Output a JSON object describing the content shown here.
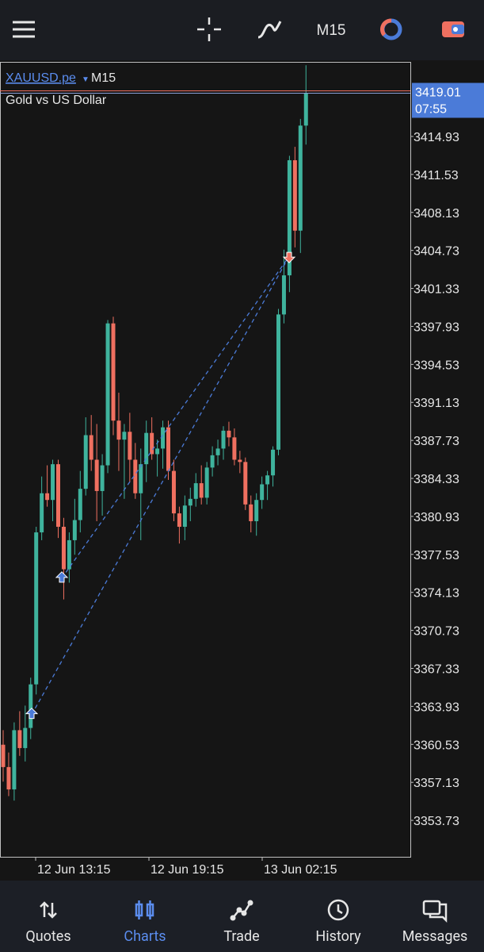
{
  "toolbar": {
    "timeframe": "M15"
  },
  "chart_data": {
    "type": "candlestick",
    "symbol": "XAUUSD.pe",
    "symbol_timeframe": "M15",
    "description": "Gold vs US Dollar",
    "up_color": "#3fb39d",
    "down_color": "#ef7060",
    "ylim": [
      3350.47,
      3421.53
    ],
    "yticks": [
      3414.93,
      3411.53,
      3408.13,
      3404.73,
      3401.33,
      3397.93,
      3394.53,
      3391.13,
      3387.73,
      3384.33,
      3380.93,
      3377.53,
      3374.13,
      3370.73,
      3367.33,
      3363.93,
      3360.53,
      3357.13,
      3353.73
    ],
    "x_labels": [
      "12 Jun 13:15",
      "12 Jun 19:15",
      "13 Jun 02:15"
    ],
    "bid": 3419.01,
    "bid_time": "07:55",
    "trades": [
      {
        "open": 3363.2,
        "close": 3404.2
      },
      {
        "open": 3375.4,
        "close": 3404.2
      }
    ],
    "ohlc": [
      [
        3360.5,
        3361.8,
        3357.2,
        3358.5
      ],
      [
        3358.5,
        3359.8,
        3355.9,
        3356.5
      ],
      [
        3356.5,
        3362.5,
        3355.5,
        3361.8
      ],
      [
        3361.8,
        3363.5,
        3359.5,
        3360.2
      ],
      [
        3360.2,
        3364.0,
        3359.0,
        3362.0
      ],
      [
        3362.0,
        3366.5,
        3361.0,
        3365.9
      ],
      [
        3365.9,
        3380.0,
        3365.0,
        3379.5
      ],
      [
        3379.5,
        3384.5,
        3378.8,
        3383.0
      ],
      [
        3383.0,
        3385.5,
        3381.8,
        3382.4
      ],
      [
        3382.4,
        3386.0,
        3380.5,
        3385.6
      ],
      [
        3385.6,
        3386.0,
        3379.0,
        3380.0
      ],
      [
        3380.0,
        3380.8,
        3373.5,
        3376.2
      ],
      [
        3376.2,
        3379.5,
        3375.0,
        3378.8
      ],
      [
        3378.8,
        3382.5,
        3377.5,
        3380.6
      ],
      [
        3380.6,
        3385.0,
        3379.5,
        3383.4
      ],
      [
        3383.4,
        3389.8,
        3382.8,
        3388.2
      ],
      [
        3388.2,
        3390.0,
        3385.0,
        3386.0
      ],
      [
        3386.0,
        3389.2,
        3380.5,
        3383.2
      ],
      [
        3383.2,
        3386.5,
        3381.0,
        3385.5
      ],
      [
        3385.5,
        3398.5,
        3384.8,
        3398.2
      ],
      [
        3398.2,
        3398.8,
        3388.2,
        3389.5
      ],
      [
        3389.5,
        3392.0,
        3385.0,
        3387.8
      ],
      [
        3387.8,
        3389.2,
        3382.5,
        3388.5
      ],
      [
        3388.5,
        3390.2,
        3384.0,
        3386.0
      ],
      [
        3386.0,
        3387.5,
        3382.5,
        3383.0
      ],
      [
        3383.0,
        3387.0,
        3378.8,
        3385.6
      ],
      [
        3385.6,
        3389.5,
        3384.0,
        3388.4
      ],
      [
        3388.4,
        3389.8,
        3386.0,
        3386.5
      ],
      [
        3386.5,
        3387.8,
        3384.5,
        3387.0
      ],
      [
        3387.0,
        3389.5,
        3385.2,
        3388.9
      ],
      [
        3388.9,
        3389.5,
        3384.2,
        3385.0
      ],
      [
        3385.0,
        3386.0,
        3380.5,
        3381.2
      ],
      [
        3381.2,
        3381.8,
        3378.5,
        3380.0
      ],
      [
        3380.0,
        3382.8,
        3378.8,
        3381.9
      ],
      [
        3381.9,
        3383.5,
        3380.5,
        3382.5
      ],
      [
        3382.5,
        3384.8,
        3381.8,
        3383.9
      ],
      [
        3383.9,
        3385.5,
        3382.0,
        3382.6
      ],
      [
        3382.6,
        3385.8,
        3382.0,
        3385.3
      ],
      [
        3385.3,
        3387.2,
        3384.5,
        3386.4
      ],
      [
        3386.4,
        3387.8,
        3385.5,
        3387.0
      ],
      [
        3387.0,
        3389.0,
        3386.0,
        3388.6
      ],
      [
        3388.6,
        3389.4,
        3387.2,
        3388.0
      ],
      [
        3388.0,
        3388.8,
        3385.5,
        3386.0
      ],
      [
        3386.0,
        3386.8,
        3384.8,
        3385.8
      ],
      [
        3385.8,
        3386.2,
        3381.5,
        3382.0
      ],
      [
        3382.0,
        3382.8,
        3379.5,
        3380.5
      ],
      [
        3380.5,
        3383.0,
        3379.2,
        3382.4
      ],
      [
        3382.4,
        3384.5,
        3381.6,
        3383.8
      ],
      [
        3383.8,
        3385.0,
        3382.4,
        3384.6
      ],
      [
        3384.6,
        3387.2,
        3383.6,
        3386.9
      ],
      [
        3386.9,
        3399.5,
        3386.4,
        3399.0
      ],
      [
        3399.0,
        3404.8,
        3398.2,
        3402.5
      ],
      [
        3402.5,
        3413.2,
        3401.0,
        3412.8
      ],
      [
        3412.8,
        3414.0,
        3405.0,
        3406.5
      ],
      [
        3406.5,
        3416.5,
        3404.5,
        3415.9
      ],
      [
        3415.9,
        3421.3,
        3414.2,
        3418.8
      ]
    ]
  },
  "nav": {
    "tabs": [
      "Quotes",
      "Charts",
      "Trade",
      "History",
      "Messages"
    ]
  }
}
